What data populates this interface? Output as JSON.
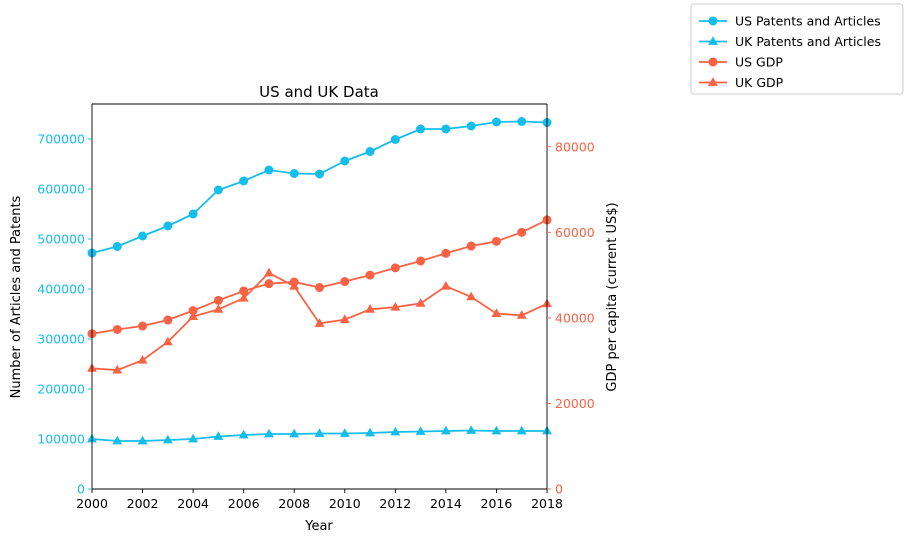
{
  "chart_data": {
    "type": "line",
    "title": "US and UK Data",
    "xlabel": "Year",
    "ylabel_left": "Number of Articles and Patents",
    "ylabel_right": "GDP per capita (current US$)",
    "xlim": [
      2000,
      2018
    ],
    "ylim_left": [
      0,
      770000
    ],
    "ylim_right": [
      0,
      90000
    ],
    "x_ticks": [
      2000,
      2002,
      2004,
      2006,
      2008,
      2010,
      2012,
      2014,
      2016,
      2018
    ],
    "y_ticks_left": [
      0,
      100000,
      200000,
      300000,
      400000,
      500000,
      600000,
      700000
    ],
    "y_ticks_right": [
      0,
      20000,
      40000,
      60000,
      80000
    ],
    "legend_location": "outside-top-right",
    "colors": {
      "left_axis": "#14bdeb",
      "right_axis": "#f96244",
      "series_left": "#14bdeb",
      "series_right": "#f96244"
    },
    "x": [
      2000,
      2001,
      2002,
      2003,
      2004,
      2005,
      2006,
      2007,
      2008,
      2009,
      2010,
      2011,
      2012,
      2013,
      2014,
      2015,
      2016,
      2017,
      2018
    ],
    "series": [
      {
        "name": "US Patents and Articles",
        "axis": "left",
        "marker": "circle",
        "color": "#14bdeb",
        "values": [
          472000,
          485000,
          506000,
          526000,
          550000,
          598000,
          616000,
          638000,
          631000,
          630000,
          656000,
          675000,
          699000,
          720000,
          720000,
          726000,
          734000,
          735000,
          733000
        ]
      },
      {
        "name": "UK Patents and Articles",
        "axis": "left",
        "marker": "triangle",
        "color": "#14bdeb",
        "values": [
          100000,
          96000,
          96000,
          98000,
          100000,
          105000,
          108000,
          110000,
          110000,
          111000,
          111000,
          112000,
          114000,
          115000,
          116000,
          117000,
          116000,
          116000,
          116000
        ]
      },
      {
        "name": "US GDP",
        "axis": "right",
        "marker": "circle",
        "color": "#f96244",
        "values": [
          36300,
          37300,
          38100,
          39500,
          41700,
          44100,
          46300,
          48000,
          48400,
          47100,
          48500,
          50000,
          51700,
          53300,
          55100,
          56800,
          57900,
          60000,
          62900
        ]
      },
      {
        "name": "UK GDP",
        "axis": "right",
        "marker": "triangle",
        "color": "#f96244",
        "values": [
          28200,
          27800,
          30100,
          34400,
          40300,
          42000,
          44600,
          50500,
          47400,
          38700,
          39600,
          42000,
          42500,
          43400,
          47400,
          44900,
          41000,
          40600,
          43300
        ]
      }
    ]
  }
}
